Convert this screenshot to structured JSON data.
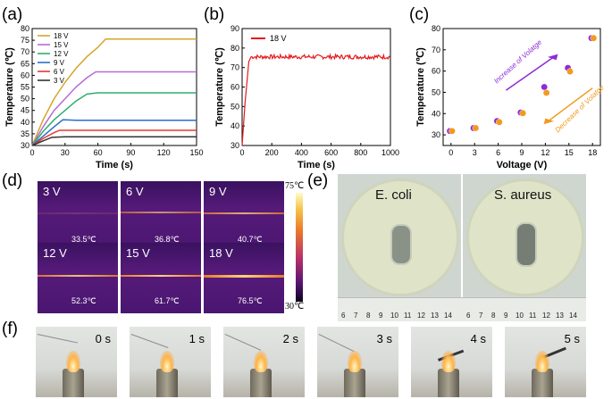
{
  "panels": {
    "a": "(a)",
    "b": "(b)",
    "c": "(c)",
    "d": "(d)",
    "e": "(e)",
    "f": "(f)"
  },
  "chart_data": [
    {
      "type": "line",
      "panel": "a",
      "xlabel": "Time (s)",
      "ylabel": "Temperature (℃)",
      "xlim": [
        0,
        150
      ],
      "ylim": [
        30,
        80
      ],
      "xticks": [
        0,
        30,
        60,
        90,
        120,
        150
      ],
      "yticks": [
        30,
        35,
        40,
        45,
        50,
        55,
        60,
        65,
        70,
        75,
        80
      ],
      "series": [
        {
          "name": "18 V",
          "color": "#d4a52a",
          "x": [
            0,
            10,
            20,
            30,
            40,
            50,
            60,
            67,
            80,
            100,
            120,
            150
          ],
          "y": [
            30,
            41,
            50,
            57,
            63,
            68,
            72,
            75.5,
            75.5,
            75.5,
            75.5,
            75.5
          ]
        },
        {
          "name": "15 V",
          "color": "#b86ad6",
          "x": [
            0,
            10,
            20,
            30,
            40,
            50,
            58,
            70,
            100,
            150
          ],
          "y": [
            30,
            38,
            45,
            50,
            55,
            59,
            61.5,
            61.5,
            61.5,
            61.5
          ]
        },
        {
          "name": "12 V",
          "color": "#2fae6b",
          "x": [
            0,
            10,
            20,
            30,
            40,
            50,
            60,
            100,
            150
          ],
          "y": [
            30,
            36,
            41,
            45,
            49,
            52,
            52.5,
            52.5,
            52.5
          ]
        },
        {
          "name": "9 V",
          "color": "#2a6fc9",
          "x": [
            0,
            10,
            20,
            28,
            40,
            100,
            150
          ],
          "y": [
            30,
            34,
            38,
            41,
            40.8,
            40.8,
            40.8
          ]
        },
        {
          "name": "6 V",
          "color": "#e53935",
          "x": [
            0,
            10,
            20,
            25,
            40,
            100,
            150
          ],
          "y": [
            30,
            33,
            35.5,
            36.5,
            36.5,
            36.5,
            36.5
          ]
        },
        {
          "name": "3 V",
          "color": "#333333",
          "x": [
            0,
            10,
            18,
            30,
            100,
            150
          ],
          "y": [
            30,
            32,
            33.5,
            33.7,
            33.7,
            33.7
          ]
        }
      ]
    },
    {
      "type": "line",
      "panel": "b",
      "xlabel": "Time (s)",
      "ylabel": "Temperature (℃)",
      "xlim": [
        0,
        1000
      ],
      "ylim": [
        30,
        90
      ],
      "xticks": [
        0,
        200,
        400,
        600,
        800,
        1000
      ],
      "yticks": [
        30,
        40,
        50,
        60,
        70,
        80,
        90
      ],
      "series": [
        {
          "name": "18 V",
          "color": "#e31a1c",
          "x": [
            0,
            20,
            45,
            60,
            1000
          ],
          "y": [
            30,
            52,
            73,
            75.5,
            75.5
          ]
        }
      ]
    },
    {
      "type": "scatter",
      "panel": "c",
      "xlabel": "Voltage (V)",
      "ylabel": "Temperature (℃)",
      "xlim": [
        -1,
        19
      ],
      "ylim": [
        25,
        80
      ],
      "xticks": [
        0,
        3,
        6,
        9,
        12,
        15,
        18
      ],
      "yticks": [
        30,
        40,
        50,
        60,
        70,
        80
      ],
      "annotations": [
        "Increase of Volatge",
        "Decrease of Volatge"
      ],
      "series": [
        {
          "name": "Increase",
          "color": "#8e2bd6",
          "x": [
            0,
            3,
            6,
            9,
            12,
            15,
            18
          ],
          "y": [
            31.8,
            33.2,
            36.5,
            40.5,
            52.5,
            61.5,
            75.5
          ]
        },
        {
          "name": "Decrease",
          "color": "#f29a1e",
          "x": [
            0,
            3,
            6,
            9,
            12,
            15,
            18
          ],
          "y": [
            31.8,
            33.2,
            36.0,
            40.2,
            49.8,
            59.8,
            75.5
          ]
        }
      ]
    }
  ],
  "thermal": {
    "tiles": [
      {
        "label": "3 V",
        "temp": "33.5℃"
      },
      {
        "label": "6 V",
        "temp": "36.8℃"
      },
      {
        "label": "9 V",
        "temp": "40.7℃"
      },
      {
        "label": "12 V",
        "temp": "52.3℃"
      },
      {
        "label": "15 V",
        "temp": "61.7℃"
      },
      {
        "label": "18 V",
        "temp": "76.5℃"
      }
    ],
    "scale_max": "75℃",
    "scale_min": "30℃"
  },
  "dishes": {
    "left_title": "E. coli",
    "right_title": "S. aureus",
    "ruler_ticks": [
      "6",
      "7",
      "8",
      "9",
      "10",
      "11",
      "12",
      "13",
      "14",
      "6",
      "7",
      "8",
      "9",
      "10",
      "11",
      "12",
      "13",
      "14"
    ]
  },
  "ignition": {
    "frames": [
      "0 s",
      "1 s",
      "2 s",
      "3 s",
      "4 s",
      "5 s"
    ]
  }
}
